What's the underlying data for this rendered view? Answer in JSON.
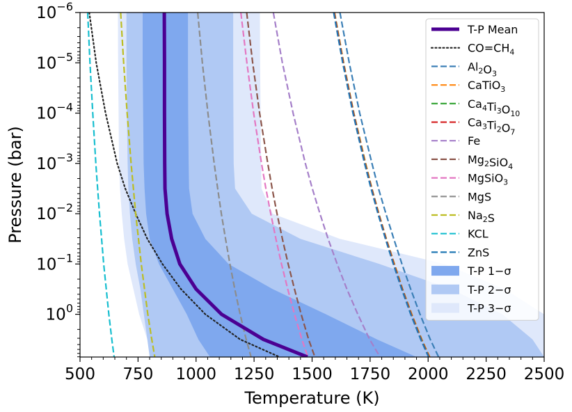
{
  "chart_data": {
    "type": "line",
    "title": "",
    "xlabel": "Temperature (K)",
    "ylabel": "Pressure (bar)",
    "xlim": [
      500,
      2500
    ],
    "ylim_log10": [
      -6,
      0.85
    ],
    "y_axis": "log, inverted (low pressure at top)",
    "x_ticks": [
      "500",
      "750",
      "1000",
      "1250",
      "1500",
      "1750",
      "2000",
      "2250",
      "2500"
    ],
    "y_ticks": [
      {
        "base": "10",
        "exp": "−6"
      },
      {
        "base": "10",
        "exp": "−5"
      },
      {
        "base": "10",
        "exp": "−4"
      },
      {
        "base": "10",
        "exp": "−3"
      },
      {
        "base": "10",
        "exp": "−2"
      },
      {
        "base": "10",
        "exp": "−1"
      },
      {
        "base": "10",
        "exp": "0"
      }
    ],
    "pressure_grid_log10": [
      -6,
      -5,
      -4,
      -3,
      -2.5,
      -2,
      -1.5,
      -1,
      -0.5,
      0,
      0.5,
      0.85
    ],
    "bands": [
      {
        "name": "T-P 3−σ",
        "color": "#dfe8fb",
        "left_T": [
          663,
          664,
          666,
          668,
          672,
          680,
          690,
          705,
          730,
          755,
          790,
          812
        ],
        "right_T": [
          1275,
          1276,
          1278,
          1280,
          1282,
          1330,
          1620,
          2070,
          2330,
          2500,
          2500,
          2500
        ]
      },
      {
        "name": "T-P 2−σ",
        "color": "#b0c9f4",
        "left_T": [
          700,
          700,
          702,
          705,
          708,
          715,
          725,
          740,
          760,
          775,
          790,
          800
        ],
        "right_T": [
          1160,
          1160,
          1161,
          1162,
          1168,
          1240,
          1450,
          1790,
          2100,
          2320,
          2450,
          2500
        ]
      },
      {
        "name": "T-P 1−σ",
        "color": "#7fa8ee",
        "left_T": [
          770,
          770,
          772,
          774,
          778,
          785,
          800,
          840,
          900,
          960,
          1010,
          1060
        ],
        "right_T": [
          965,
          965,
          966,
          968,
          970,
          985,
          1040,
          1140,
          1330,
          1560,
          1780,
          1950
        ]
      }
    ],
    "mean": {
      "name": "T-P Mean",
      "color": "#4b0092",
      "T": [
        863,
        864,
        864,
        865,
        866,
        875,
        895,
        930,
        1000,
        1110,
        1290,
        1480
      ]
    },
    "condensation_curves": [
      {
        "name": "CO=CH4",
        "color": "#222222",
        "style": "dotted",
        "T": [
          540,
          570,
          610,
          660,
          695,
          740,
          790,
          855,
          935,
          1040,
          1190,
          1360
        ]
      },
      {
        "name": "Al2O3",
        "color": "#3b7fb6",
        "style": "dashed",
        "T": [
          1620,
          1660,
          1705,
          1758,
          1786,
          1818,
          1852,
          1887,
          1925,
          1965,
          2009,
          2045
        ]
      },
      {
        "name": "CaTiO3",
        "color": "#ff8c1a",
        "style": "dashed",
        "T": [
          1597,
          1636,
          1680,
          1731,
          1758,
          1788,
          1820,
          1855,
          1890,
          1930,
          1973,
          2007
        ]
      },
      {
        "name": "Ca4Ti3O10",
        "color": "#2ca02c",
        "style": "dashed",
        "T": [
          1596,
          1635,
          1679,
          1729,
          1757,
          1787,
          1819,
          1853,
          1889,
          1928,
          1971,
          2005
        ]
      },
      {
        "name": "Ca3Ti2O7",
        "color": "#d62728",
        "style": "dashed",
        "T": [
          1595,
          1634,
          1678,
          1728,
          1756,
          1786,
          1818,
          1852,
          1888,
          1927,
          1970,
          2004
        ]
      },
      {
        "name": "Fe",
        "color": "#a57fc9",
        "style": "dashed",
        "T": [
          1333,
          1372,
          1418,
          1471,
          1501,
          1534,
          1569,
          1608,
          1650,
          1697,
          1748,
          1793
        ]
      },
      {
        "name": "Mg2SiO4",
        "color": "#8c564b",
        "style": "dashed",
        "T": [
          1218,
          1244,
          1274,
          1309,
          1328,
          1349,
          1372,
          1397,
          1424,
          1453,
          1485,
          1512
        ]
      },
      {
        "name": "MgSiO3",
        "color": "#e377c2",
        "style": "dashed",
        "T": [
          1193,
          1219,
          1248,
          1282,
          1301,
          1322,
          1344,
          1368,
          1395,
          1424,
          1456,
          1482
        ]
      },
      {
        "name": "MgS",
        "color": "#8c8c8c",
        "style": "dashed",
        "T": [
          1007,
          1027,
          1051,
          1078,
          1093,
          1109,
          1127,
          1146,
          1167,
          1190,
          1216,
          1237
        ]
      },
      {
        "name": "Na2S",
        "color": "#bcbd22",
        "style": "dashed",
        "T": [
          675,
          688,
          703,
          720,
          730,
          740,
          752,
          764,
          778,
          792,
          809,
          822
        ]
      },
      {
        "name": "KCL",
        "color": "#17becf",
        "style": "dashed",
        "T": [
          533,
          543,
          555,
          568,
          576,
          584,
          593,
          602,
          613,
          624,
          637,
          647
        ]
      },
      {
        "name": "ZnS",
        "color": "#1f77b4",
        "style": "dashed",
        "T": [
          1593,
          1632,
          1676,
          1726,
          1754,
          1784,
          1816,
          1850,
          1886,
          1925,
          1968,
          2002
        ]
      }
    ],
    "legend": {
      "placement": "top-right",
      "entries": [
        {
          "kind": "line",
          "color": "#4b0092",
          "style": "solid",
          "base": "T-P Mean",
          "parts": [
            {
              "t": "T-P Mean"
            }
          ]
        },
        {
          "kind": "line",
          "color": "#222222",
          "style": "dotted",
          "base": "CO=CH",
          "parts": [
            {
              "t": "CO=CH"
            },
            {
              "t": "4",
              "sub": true
            }
          ]
        },
        {
          "kind": "line",
          "color": "#3b7fb6",
          "style": "dashed",
          "base": "AlO",
          "parts": [
            {
              "t": "Al"
            },
            {
              "t": "2",
              "sub": true
            },
            {
              "t": "O"
            },
            {
              "t": "3",
              "sub": true
            }
          ]
        },
        {
          "kind": "line",
          "color": "#ff8c1a",
          "style": "dashed",
          "base": "CaTiO",
          "parts": [
            {
              "t": "CaTiO"
            },
            {
              "t": "3",
              "sub": true
            }
          ]
        },
        {
          "kind": "line",
          "color": "#2ca02c",
          "style": "dashed",
          "base": "CaTiO",
          "parts": [
            {
              "t": "Ca"
            },
            {
              "t": "4",
              "sub": true
            },
            {
              "t": "Ti"
            },
            {
              "t": "3",
              "sub": true
            },
            {
              "t": "O"
            },
            {
              "t": "10",
              "sub": true
            }
          ]
        },
        {
          "kind": "line",
          "color": "#d62728",
          "style": "dashed",
          "base": "CaTiO",
          "parts": [
            {
              "t": "Ca"
            },
            {
              "t": "3",
              "sub": true
            },
            {
              "t": "Ti"
            },
            {
              "t": "2",
              "sub": true
            },
            {
              "t": "O"
            },
            {
              "t": "7",
              "sub": true
            }
          ]
        },
        {
          "kind": "line",
          "color": "#a57fc9",
          "style": "dashed",
          "base": "Fe",
          "parts": [
            {
              "t": "Fe"
            }
          ]
        },
        {
          "kind": "line",
          "color": "#8c564b",
          "style": "dashed",
          "base": "MgSiO",
          "parts": [
            {
              "t": "Mg"
            },
            {
              "t": "2",
              "sub": true
            },
            {
              "t": "SiO"
            },
            {
              "t": "4",
              "sub": true
            }
          ]
        },
        {
          "kind": "line",
          "color": "#e377c2",
          "style": "dashed",
          "base": "MgSiO",
          "parts": [
            {
              "t": "MgSiO"
            },
            {
              "t": "3",
              "sub": true
            }
          ]
        },
        {
          "kind": "line",
          "color": "#8c8c8c",
          "style": "dashed",
          "base": "MgS",
          "parts": [
            {
              "t": "MgS"
            }
          ]
        },
        {
          "kind": "line",
          "color": "#bcbd22",
          "style": "dashed",
          "base": "NaS",
          "parts": [
            {
              "t": "Na"
            },
            {
              "t": "2",
              "sub": true
            },
            {
              "t": "S"
            }
          ]
        },
        {
          "kind": "line",
          "color": "#17becf",
          "style": "dashed",
          "base": "KCL",
          "parts": [
            {
              "t": "KCL"
            }
          ]
        },
        {
          "kind": "line",
          "color": "#1f77b4",
          "style": "dashed",
          "base": "ZnS",
          "parts": [
            {
              "t": "ZnS"
            }
          ]
        },
        {
          "kind": "patch",
          "color": "#7fa8ee",
          "style": "fill",
          "base": "T-P 1−σ",
          "parts": [
            {
              "t": "T-P 1−σ"
            }
          ]
        },
        {
          "kind": "patch",
          "color": "#b0c9f4",
          "style": "fill",
          "base": "T-P 2−σ",
          "parts": [
            {
              "t": "T-P 2−σ"
            }
          ]
        },
        {
          "kind": "patch",
          "color": "#dfe8fb",
          "style": "fill",
          "base": "T-P 3−σ",
          "parts": [
            {
              "t": "T-P 3−σ"
            }
          ]
        }
      ]
    }
  }
}
